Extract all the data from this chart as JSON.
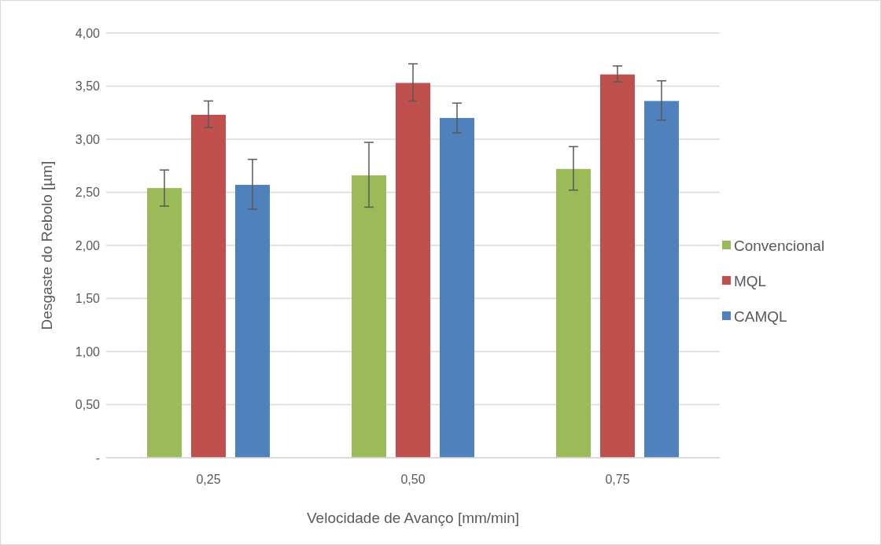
{
  "chart_data": {
    "type": "bar",
    "xlabel": "Velocidade de Avanço [mm/min]",
    "ylabel": "Desgaste do Rebolo [µm]",
    "categories": [
      "0,25",
      "0,50",
      "0,75"
    ],
    "series": [
      {
        "name": "Convencional",
        "color": "#9bbb59",
        "values": [
          2.54,
          2.66,
          2.72
        ],
        "errors": [
          [
            2.37,
            2.71
          ],
          [
            2.36,
            2.97
          ],
          [
            2.52,
            2.93
          ]
        ]
      },
      {
        "name": "MQL",
        "color": "#c0504d",
        "values": [
          3.23,
          3.53,
          3.61
        ],
        "errors": [
          [
            3.11,
            3.36
          ],
          [
            3.36,
            3.71
          ],
          [
            3.54,
            3.69
          ]
        ]
      },
      {
        "name": "CAMQL",
        "color": "#4f81bd",
        "values": [
          2.57,
          3.2,
          3.36
        ],
        "errors": [
          [
            2.34,
            2.81
          ],
          [
            3.06,
            3.34
          ],
          [
            3.18,
            3.55
          ]
        ]
      }
    ],
    "ylim": [
      0,
      4
    ],
    "yticks": [
      {
        "value": 0,
        "label": "-"
      },
      {
        "value": 0.5,
        "label": "0,50"
      },
      {
        "value": 1,
        "label": "1,00"
      },
      {
        "value": 1.5,
        "label": "1,50"
      },
      {
        "value": 2,
        "label": "2,00"
      },
      {
        "value": 2.5,
        "label": "2,50"
      },
      {
        "value": 3,
        "label": "3,00"
      },
      {
        "value": 3.5,
        "label": "3,50"
      },
      {
        "value": 4,
        "label": "4,00"
      }
    ],
    "grid": "y",
    "legend": "right"
  }
}
